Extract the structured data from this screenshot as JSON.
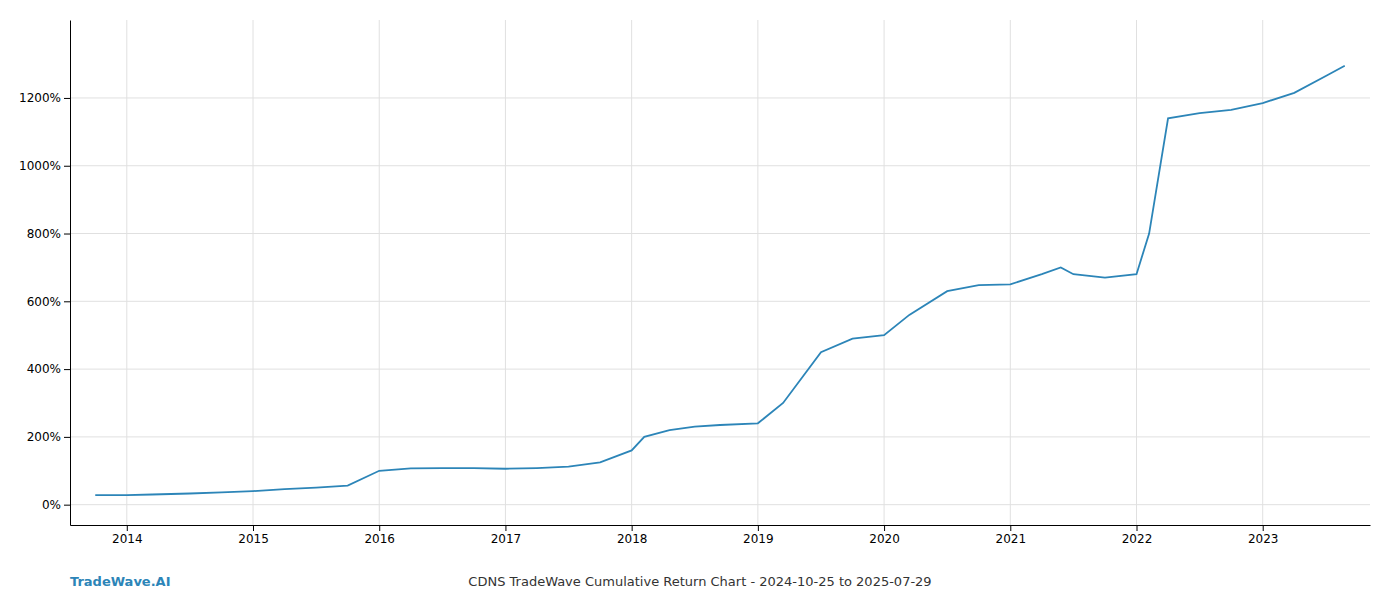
{
  "chart_data": {
    "type": "line",
    "title": "CDNS TradeWave Cumulative Return Chart - 2024-10-25 to 2025-07-29",
    "annotations": [
      {
        "text": "TradeWave.AI",
        "color": "#2c85b8"
      }
    ],
    "color": "#2c85b8",
    "x": [
      2013.75,
      2013.9,
      2014.0,
      2014.2,
      2014.5,
      2014.75,
      2015.0,
      2015.25,
      2015.5,
      2015.75,
      2016.0,
      2016.25,
      2016.5,
      2016.75,
      2017.0,
      2017.25,
      2017.5,
      2017.75,
      2018.0,
      2018.1,
      2018.3,
      2018.5,
      2018.7,
      2019.0,
      2019.2,
      2019.5,
      2019.75,
      2020.0,
      2020.2,
      2020.5,
      2020.75,
      2021.0,
      2021.25,
      2021.4,
      2021.5,
      2021.75,
      2022.0,
      2022.1,
      2022.25,
      2022.5,
      2022.75,
      2023.0,
      2023.25,
      2023.5,
      2023.65
    ],
    "values": [
      28,
      28,
      28,
      30,
      33,
      36,
      40,
      46,
      50,
      56,
      100,
      107,
      108,
      108,
      106,
      108,
      112,
      125,
      160,
      200,
      220,
      230,
      235,
      240,
      300,
      450,
      490,
      500,
      560,
      630,
      648,
      650,
      680,
      700,
      680,
      670,
      680,
      800,
      1140,
      1155,
      1165,
      1185,
      1215,
      1265,
      1295
    ],
    "xlim": [
      2013.55,
      2023.85
    ],
    "xticks": [
      2014,
      2015,
      2016,
      2017,
      2018,
      2019,
      2020,
      2021,
      2022,
      2023
    ],
    "ylim": [
      -60,
      1430
    ],
    "yticks": [
      {
        "value": 0,
        "label": "0%"
      },
      {
        "value": 200,
        "label": "200%"
      },
      {
        "value": 400,
        "label": "400%"
      },
      {
        "value": 600,
        "label": "600%"
      },
      {
        "value": 800,
        "label": "800%"
      },
      {
        "value": 1000,
        "label": "1000%"
      },
      {
        "value": 1200,
        "label": "1200%"
      }
    ],
    "grid": true
  }
}
